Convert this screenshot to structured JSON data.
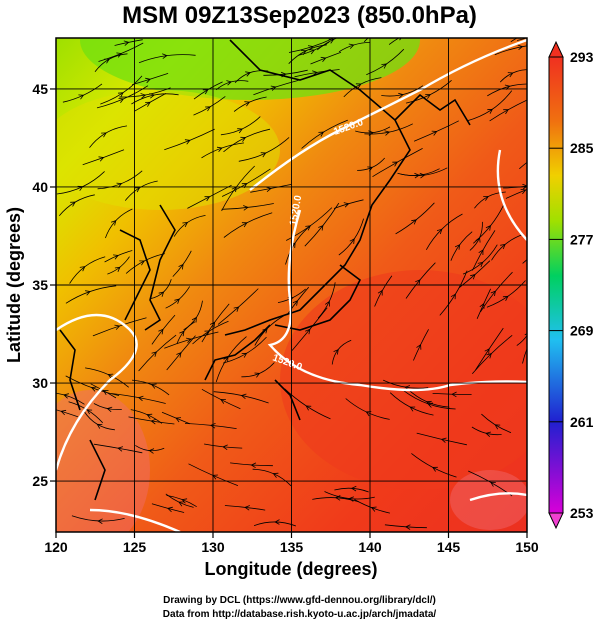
{
  "title": "MSM 09Z13Sep2023 (850.0hPa)",
  "map": {
    "lon_range": [
      120,
      150
    ],
    "lat_range": [
      22.4,
      47.6
    ],
    "lon_ticks": [
      "120",
      "125",
      "130",
      "135",
      "140",
      "145",
      "150"
    ],
    "lat_ticks": [
      "45",
      "40",
      "35",
      "30",
      "25"
    ],
    "xlabel": "Longitude (degrees)",
    "ylabel": "Latitude  (degrees)",
    "contour_labels": [
      "1520.0",
      "1520.0",
      "1520.0"
    ]
  },
  "colorbar": {
    "ticks": [
      "293",
      "285",
      "277",
      "269",
      "261",
      "253"
    ],
    "range": [
      253,
      293
    ],
    "colors": [
      "#d800d8",
      "#2020d0",
      "#20c0f0",
      "#00d070",
      "#80e000",
      "#f0f000",
      "#f0a000",
      "#f03020"
    ]
  },
  "credits": {
    "line1": "Drawing by DCL (https://www.gfd-dennou.org/library/dcl/)",
    "line2": "Data from http://database.rish.kyoto-u.ac.jp/arch/jmadata/"
  }
}
